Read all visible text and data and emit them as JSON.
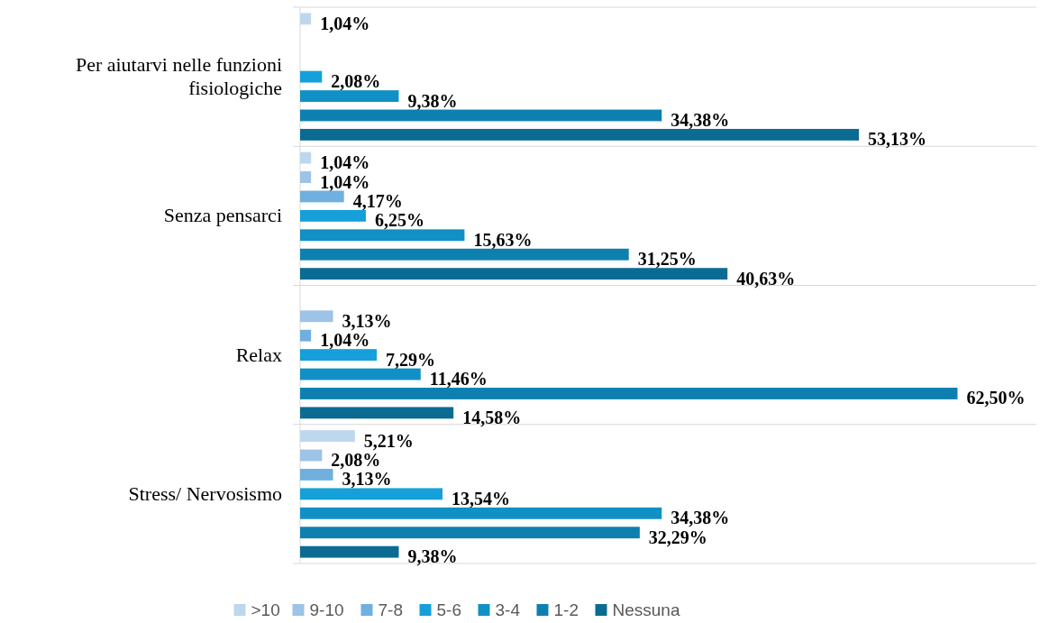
{
  "chart_data": {
    "type": "bar",
    "orientation": "horizontal",
    "categories": [
      "Per aiutarvi nelle funzioni fisiologiche",
      "Senza pensarci",
      "Relax",
      "Stress/ Nervosismo"
    ],
    "xlim": [
      0,
      70
    ],
    "series": [
      {
        "name": ">10",
        "color": "#bdd7ee",
        "values": [
          1.04,
          1.04,
          null,
          5.21
        ],
        "value_labels": [
          "1,04%",
          "1,04%",
          null,
          "5,21%"
        ]
      },
      {
        "name": "9-10",
        "color": "#9dc3e6",
        "values": [
          null,
          1.04,
          3.13,
          2.08
        ],
        "value_labels": [
          null,
          "1,04%",
          "3,13%",
          "2,08%"
        ]
      },
      {
        "name": "7-8",
        "color": "#6fb0de",
        "values": [
          null,
          4.17,
          1.04,
          3.13
        ],
        "value_labels": [
          null,
          "4,17%",
          "1,04%",
          "3,13%"
        ]
      },
      {
        "name": "5-6",
        "color": "#15a0da",
        "values": [
          2.08,
          6.25,
          7.29,
          13.54
        ],
        "value_labels": [
          "2,08%",
          "6,25%",
          "7,29%",
          "13,54%"
        ]
      },
      {
        "name": "3-4",
        "color": "#1190c6",
        "values": [
          9.38,
          15.63,
          11.46,
          34.38
        ],
        "value_labels": [
          "9,38%",
          "15,63%",
          "11,46%",
          "34,38%"
        ]
      },
      {
        "name": "1-2",
        "color": "#0e80b0",
        "values": [
          34.38,
          31.25,
          62.5,
          32.29
        ],
        "value_labels": [
          "34,38%",
          "31,25%",
          "62,50%",
          "32,29%"
        ]
      },
      {
        "name": "Nessuna",
        "color": "#0c6b92",
        "values": [
          53.13,
          40.63,
          14.58,
          9.38
        ],
        "value_labels": [
          "53,13%",
          "40,63%",
          "14,58%",
          "9,38%"
        ]
      }
    ],
    "legend": "bottom"
  }
}
